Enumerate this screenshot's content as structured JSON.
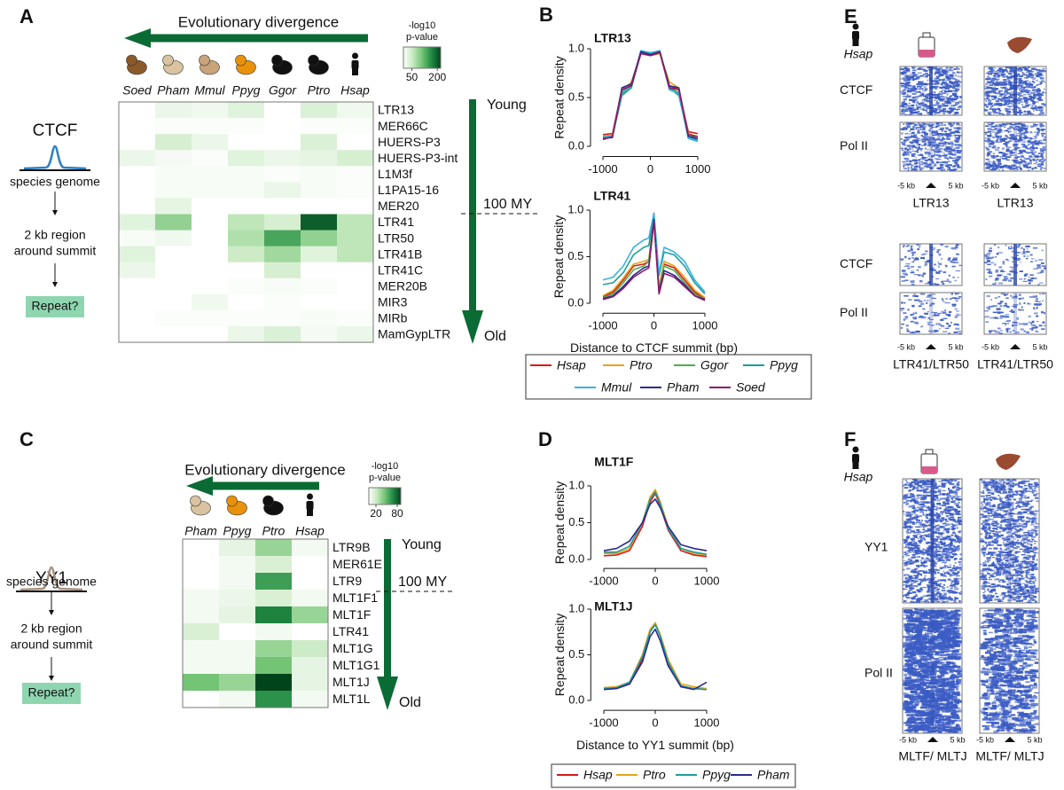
{
  "panel_a": {
    "label": "A",
    "arrow_title": "Evolutionary divergence",
    "factor": "CTCF",
    "steps": [
      [
        "species genome"
      ],
      [
        "2 kb region",
        "around summit"
      ],
      [
        "Repeat?"
      ]
    ],
    "young": "Young",
    "old": "Old",
    "divergence_mark": "100 MY",
    "chart_data": {
      "type": "heatmap",
      "species": [
        "Soed",
        "Pham",
        "Mmul",
        "Ppyg",
        "Ggor",
        "Ptro",
        "Hsap"
      ],
      "repeats": [
        "LTR13",
        "MER66C",
        "HUERS-P3",
        "HUERS-P3-int",
        "L1M3f",
        "L1PA15-16",
        "MER20",
        "LTR41",
        "LTR50",
        "LTR41B",
        "LTR41C",
        "MER20B",
        "MIR3",
        "MIRb",
        "MamGypLTR"
      ],
      "values": [
        [
          0,
          20,
          15,
          30,
          0,
          35,
          15
        ],
        [
          0,
          5,
          5,
          5,
          0,
          5,
          5
        ],
        [
          0,
          40,
          20,
          0,
          0,
          35,
          0
        ],
        [
          20,
          10,
          5,
          30,
          20,
          25,
          40
        ],
        [
          0,
          8,
          8,
          8,
          5,
          8,
          5
        ],
        [
          0,
          8,
          8,
          8,
          20,
          8,
          5
        ],
        [
          0,
          25,
          0,
          0,
          0,
          0,
          0
        ],
        [
          30,
          90,
          0,
          60,
          40,
          200,
          60
        ],
        [
          8,
          15,
          0,
          70,
          140,
          90,
          60
        ],
        [
          30,
          0,
          0,
          50,
          80,
          30,
          60
        ],
        [
          20,
          0,
          0,
          0,
          40,
          0,
          0
        ],
        [
          0,
          0,
          0,
          5,
          8,
          5,
          0
        ],
        [
          0,
          0,
          15,
          0,
          5,
          0,
          0
        ],
        [
          0,
          5,
          5,
          5,
          5,
          8,
          5
        ],
        [
          0,
          0,
          0,
          20,
          35,
          10,
          20
        ]
      ],
      "colorbar": {
        "title": [
          "-log10",
          "p-value"
        ],
        "lim": [
          0,
          220
        ],
        "ticks": [
          50,
          200
        ]
      }
    }
  },
  "panel_b": {
    "label": "B",
    "legend": [
      {
        "name": "Hsap",
        "color": "#d7191c"
      },
      {
        "name": "Ptro",
        "color": "#e8a317"
      },
      {
        "name": "Ggor",
        "color": "#4daf4a"
      },
      {
        "name": "Ppyg",
        "color": "#1a9e9e"
      },
      {
        "name": "Mmul",
        "color": "#3ab0e0"
      },
      {
        "name": "Pham",
        "color": "#2c2c8c"
      },
      {
        "name": "Soed",
        "color": "#8c1a6a"
      }
    ],
    "chart_data": [
      {
        "type": "line",
        "title": "LTR13",
        "y_label": "Repeat density",
        "x": [
          -1000,
          -800,
          -600,
          -400,
          -200,
          0,
          200,
          400,
          600,
          800,
          1000
        ],
        "xlim": [
          -1150,
          1150
        ],
        "xticks": [
          -1000,
          0,
          1000
        ],
        "ylim": [
          -0.05,
          1.05
        ],
        "yticks": [
          {
            "value": 0,
            "label": "0.0"
          },
          {
            "value": 0.5,
            "label": "0.5"
          },
          {
            "value": 1,
            "label": "1.0"
          }
        ],
        "series": [
          {
            "values": [
              0.12,
              0.13,
              0.58,
              0.63,
              0.96,
              0.94,
              0.97,
              0.62,
              0.58,
              0.15,
              0.13
            ]
          },
          {
            "values": [
              0.1,
              0.12,
              0.55,
              0.66,
              0.95,
              0.93,
              0.95,
              0.66,
              0.6,
              0.13,
              0.1
            ]
          },
          {
            "values": [
              0.1,
              0.1,
              0.54,
              0.62,
              0.97,
              0.95,
              0.96,
              0.6,
              0.55,
              0.12,
              0.08
            ]
          },
          {
            "values": [
              0.08,
              0.1,
              0.52,
              0.6,
              0.96,
              0.95,
              0.97,
              0.6,
              0.52,
              0.1,
              0.06
            ]
          },
          {
            "values": [
              0.09,
              0.11,
              0.56,
              0.62,
              0.98,
              0.96,
              0.98,
              0.58,
              0.54,
              0.08,
              0.05
            ]
          },
          {
            "values": [
              0.08,
              0.09,
              0.6,
              0.64,
              0.97,
              0.94,
              0.97,
              0.62,
              0.6,
              0.1,
              0.08
            ]
          },
          {
            "values": [
              0.07,
              0.1,
              0.58,
              0.62,
              0.95,
              0.93,
              0.96,
              0.6,
              0.58,
              0.12,
              0.1
            ]
          }
        ]
      },
      {
        "type": "line",
        "title": "LTR41",
        "y_label": "Repeat density",
        "x_label": "Distance to CTCF summit (bp)",
        "x": [
          -1000,
          -800,
          -600,
          -400,
          -200,
          -100,
          0,
          100,
          200,
          400,
          600,
          800,
          1000
        ],
        "xlim": [
          -1150,
          1150
        ],
        "xticks": [
          -1000,
          0,
          1000
        ],
        "ylim": [
          -0.05,
          1.05
        ],
        "yticks": [
          {
            "value": 0,
            "label": "0.0"
          },
          {
            "value": 0.5,
            "label": "0.5"
          },
          {
            "value": 1,
            "label": "1.0"
          }
        ],
        "series": [
          {
            "values": [
              0.07,
              0.12,
              0.25,
              0.4,
              0.42,
              0.45,
              0.93,
              0.15,
              0.42,
              0.38,
              0.25,
              0.12,
              0.05
            ]
          },
          {
            "values": [
              0.08,
              0.14,
              0.27,
              0.42,
              0.45,
              0.47,
              0.95,
              0.18,
              0.45,
              0.4,
              0.28,
              0.14,
              0.06
            ]
          },
          {
            "values": [
              0.06,
              0.1,
              0.22,
              0.36,
              0.4,
              0.45,
              0.92,
              0.15,
              0.4,
              0.35,
              0.22,
              0.1,
              0.04
            ]
          },
          {
            "values": [
              0.2,
              0.22,
              0.33,
              0.52,
              0.6,
              0.62,
              0.95,
              0.3,
              0.55,
              0.52,
              0.4,
              0.22,
              0.1
            ]
          },
          {
            "values": [
              0.25,
              0.28,
              0.4,
              0.6,
              0.68,
              0.7,
              0.97,
              0.32,
              0.6,
              0.55,
              0.45,
              0.25,
              0.12
            ]
          },
          {
            "values": [
              0.05,
              0.08,
              0.18,
              0.3,
              0.38,
              0.4,
              0.9,
              0.12,
              0.35,
              0.3,
              0.2,
              0.08,
              0.04
            ]
          },
          {
            "values": [
              0.04,
              0.07,
              0.16,
              0.28,
              0.35,
              0.38,
              0.88,
              0.1,
              0.32,
              0.28,
              0.18,
              0.08,
              0.03
            ]
          }
        ]
      }
    ]
  },
  "panel_c": {
    "label": "C",
    "arrow_title": "Evolutionary divergence",
    "factor": "YY1",
    "steps": [
      [
        "species genome"
      ],
      [
        "2 kb region",
        "around summit"
      ],
      [
        "Repeat?"
      ]
    ],
    "young": "Young",
    "old": "Old",
    "divergence_mark": "100 MY",
    "chart_data": {
      "type": "heatmap",
      "species": [
        "Pham",
        "Ppyg",
        "Ptro",
        "Hsap"
      ],
      "repeats": [
        "LTR9B",
        "MER61E",
        "LTR9",
        "MLT1F1",
        "MLT1F",
        "LTR41",
        "MLT1G",
        "MLT1G1",
        "MLT1J",
        "MLT1L"
      ],
      "values": [
        [
          0,
          10,
          35,
          5
        ],
        [
          0,
          5,
          15,
          0
        ],
        [
          0,
          5,
          60,
          0
        ],
        [
          5,
          8,
          15,
          5
        ],
        [
          5,
          10,
          70,
          35
        ],
        [
          15,
          0,
          5,
          0
        ],
        [
          5,
          5,
          35,
          20
        ],
        [
          5,
          5,
          45,
          10
        ],
        [
          45,
          35,
          90,
          10
        ],
        [
          0,
          5,
          65,
          5
        ]
      ],
      "colorbar": {
        "title": [
          "-log10",
          "p-value"
        ],
        "lim": [
          0,
          90
        ],
        "ticks": [
          20,
          80
        ]
      }
    }
  },
  "panel_d": {
    "label": "D",
    "legend": [
      {
        "name": "Hsap",
        "color": "#d7191c"
      },
      {
        "name": "Ptro",
        "color": "#e8a317"
      },
      {
        "name": "Ppyg",
        "color": "#1a9e9e"
      },
      {
        "name": "Pham",
        "color": "#2c2c8c"
      }
    ],
    "chart_data": [
      {
        "type": "line",
        "title": "MLT1F",
        "y_label": "Repeat density",
        "x": [
          -1000,
          -750,
          -500,
          -250,
          -100,
          0,
          100,
          250,
          500,
          750,
          1000
        ],
        "xlim": [
          -1150,
          1150
        ],
        "xticks": [
          -1000,
          0,
          1000
        ],
        "ylim": [
          -0.05,
          1.05
        ],
        "yticks": [
          {
            "value": 0,
            "label": "0.0"
          },
          {
            "value": 0.5,
            "label": "0.5"
          },
          {
            "value": 1,
            "label": "1.0"
          }
        ],
        "series": [
          {
            "values": [
              0.05,
              0.06,
              0.12,
              0.45,
              0.78,
              0.9,
              0.72,
              0.4,
              0.12,
              0.06,
              0.04
            ]
          },
          {
            "values": [
              0.08,
              0.08,
              0.15,
              0.5,
              0.85,
              0.95,
              0.78,
              0.45,
              0.15,
              0.08,
              0.06
            ]
          },
          {
            "values": [
              0.1,
              0.1,
              0.18,
              0.5,
              0.82,
              0.92,
              0.75,
              0.42,
              0.15,
              0.1,
              0.07
            ]
          },
          {
            "values": [
              0.12,
              0.15,
              0.25,
              0.5,
              0.75,
              0.82,
              0.7,
              0.45,
              0.2,
              0.15,
              0.12
            ]
          }
        ]
      },
      {
        "type": "line",
        "title": "MLT1J",
        "y_label": "Repeat density",
        "x_label": "Distance to YY1 summit (bp)",
        "x": [
          -1000,
          -750,
          -500,
          -250,
          -100,
          0,
          100,
          250,
          500,
          750,
          1000
        ],
        "xlim": [
          -1150,
          1150
        ],
        "xticks": [
          -1000,
          0,
          1000
        ],
        "ylim": [
          -0.05,
          1.05
        ],
        "yticks": [
          {
            "value": 0,
            "label": "0.0"
          },
          {
            "value": 0.5,
            "label": "0.5"
          },
          {
            "value": 1,
            "label": "1.0"
          }
        ],
        "series": [
          {
            "values": [
              0.13,
              0.15,
              0.18,
              0.45,
              0.75,
              0.85,
              0.7,
              0.4,
              0.15,
              0.13,
              0.12
            ]
          },
          {
            "values": [
              0.14,
              0.15,
              0.2,
              0.5,
              0.78,
              0.85,
              0.72,
              0.45,
              0.18,
              0.15,
              0.13
            ]
          },
          {
            "values": [
              0.13,
              0.14,
              0.2,
              0.48,
              0.75,
              0.83,
              0.7,
              0.42,
              0.16,
              0.13,
              0.12
            ]
          },
          {
            "values": [
              0.12,
              0.13,
              0.18,
              0.42,
              0.7,
              0.78,
              0.65,
              0.38,
              0.15,
              0.12,
              0.2
            ]
          }
        ]
      }
    ]
  },
  "panel_e": {
    "label": "E",
    "species": "Hsap",
    "groups": [
      {
        "rows": [
          "CTCF",
          "Pol II"
        ],
        "ticks": [
          "-5 kb",
          "5 kb"
        ],
        "columns": [
          "LTR13",
          "LTR13"
        ]
      },
      {
        "rows": [
          "CTCF",
          "Pol II"
        ],
        "ticks": [
          "-5 kb",
          "5 kb"
        ],
        "columns": [
          "LTR41/LTR50",
          "LTR41/LTR50"
        ]
      }
    ]
  },
  "panel_f": {
    "label": "F",
    "species": "Hsap",
    "groups": [
      {
        "rows": [
          "YY1",
          "Pol II"
        ],
        "ticks": [
          "-5 kb",
          "5 kb"
        ],
        "columns": [
          "MLTF/ MLTJ",
          "MLTF/ MLTJ"
        ]
      }
    ]
  }
}
